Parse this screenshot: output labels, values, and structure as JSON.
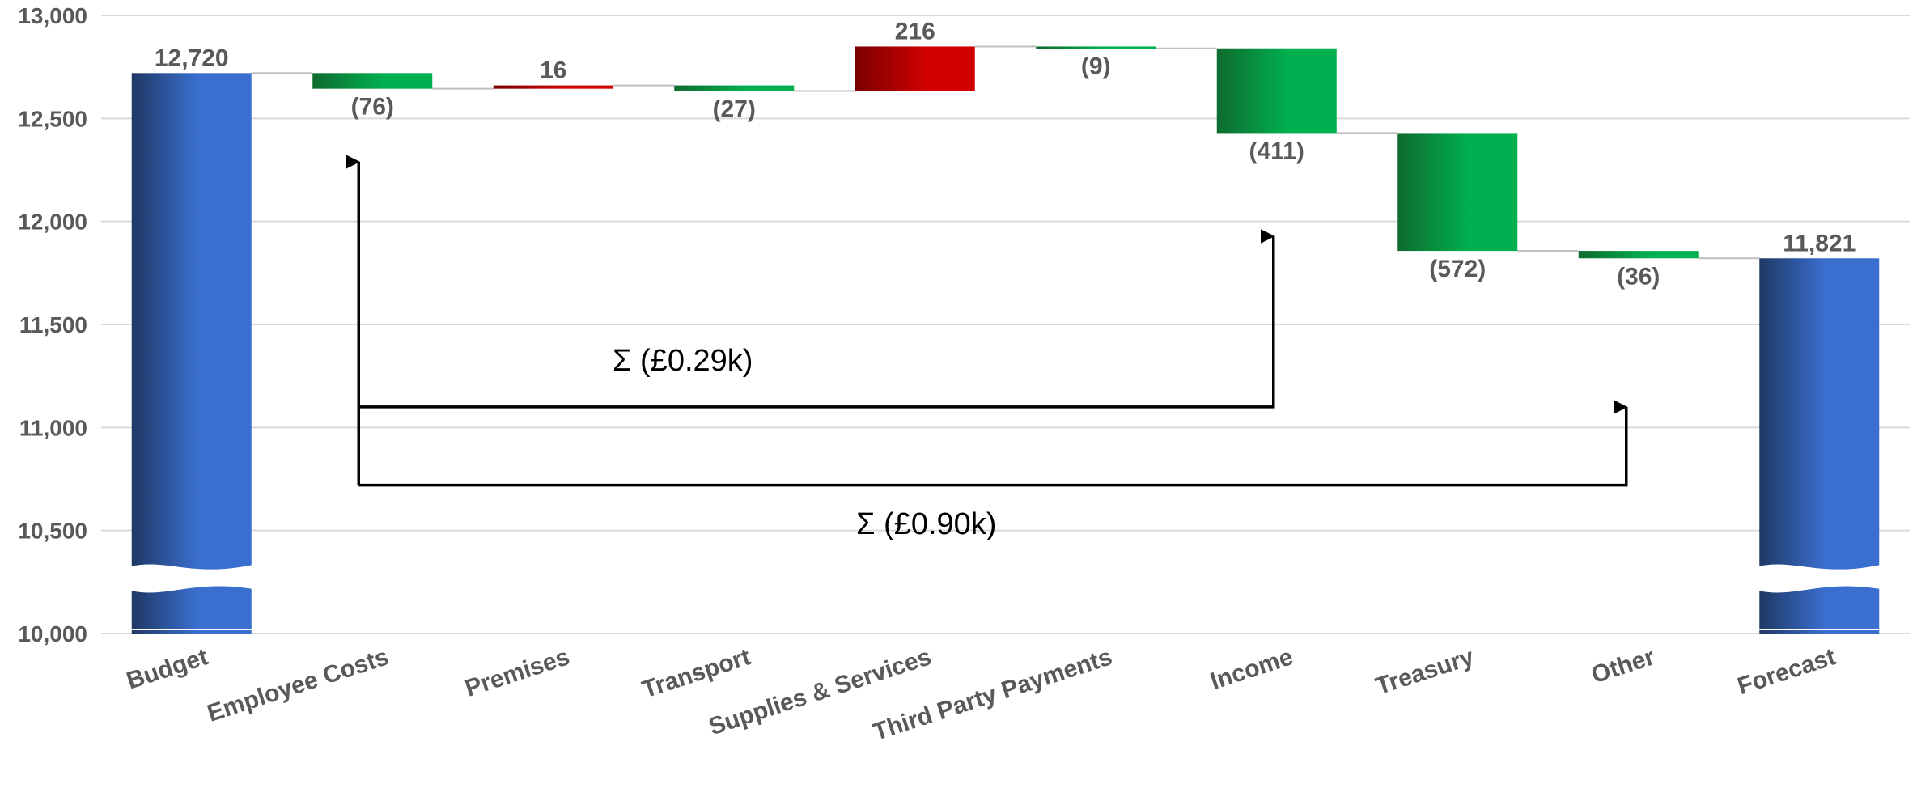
{
  "chart_data": {
    "type": "waterfall",
    "title": "",
    "xlabel": "",
    "ylabel": "",
    "ylim": [
      10000,
      13000
    ],
    "y_ticks": [
      "10,000",
      "10,500",
      "11,000",
      "11,500",
      "12,000",
      "12,500",
      "13,000"
    ],
    "y_tick_values": [
      10000,
      10500,
      11000,
      11500,
      12000,
      12500,
      13000
    ],
    "grid": true,
    "axis_break": true,
    "categories": [
      "Budget",
      "Employee Costs",
      "Premises",
      "Transport",
      "Supplies & Services",
      "Third Party Payments",
      "Income",
      "Treasury",
      "Other",
      "Forecast"
    ],
    "values": [
      12720,
      -76,
      16,
      -27,
      216,
      -9,
      -411,
      -572,
      -36,
      11821
    ],
    "kinds": [
      "total",
      "delta",
      "delta",
      "delta",
      "delta",
      "delta",
      "delta",
      "delta",
      "delta",
      "total"
    ],
    "labels": [
      "12,720",
      "(76)",
      "16",
      "(27)",
      "216",
      "(9)",
      "(411)",
      "(572)",
      "(36)",
      "11,821"
    ],
    "colors": {
      "total_dark": "#1f3864",
      "total_light": "#3a6fcf",
      "decrease_dark": "#0f6b2e",
      "decrease_light": "#00b050",
      "increase_dark": "#7b0000",
      "increase_light": "#d00000"
    },
    "annotations": [
      {
        "text": "Σ (£0.29k)",
        "from_category": "Employee Costs",
        "to_category": "Income",
        "level": 11100
      },
      {
        "text": "Σ (£0.90k)",
        "from_category": "Employee Costs",
        "to_category": "Other",
        "level": 10720
      }
    ]
  }
}
